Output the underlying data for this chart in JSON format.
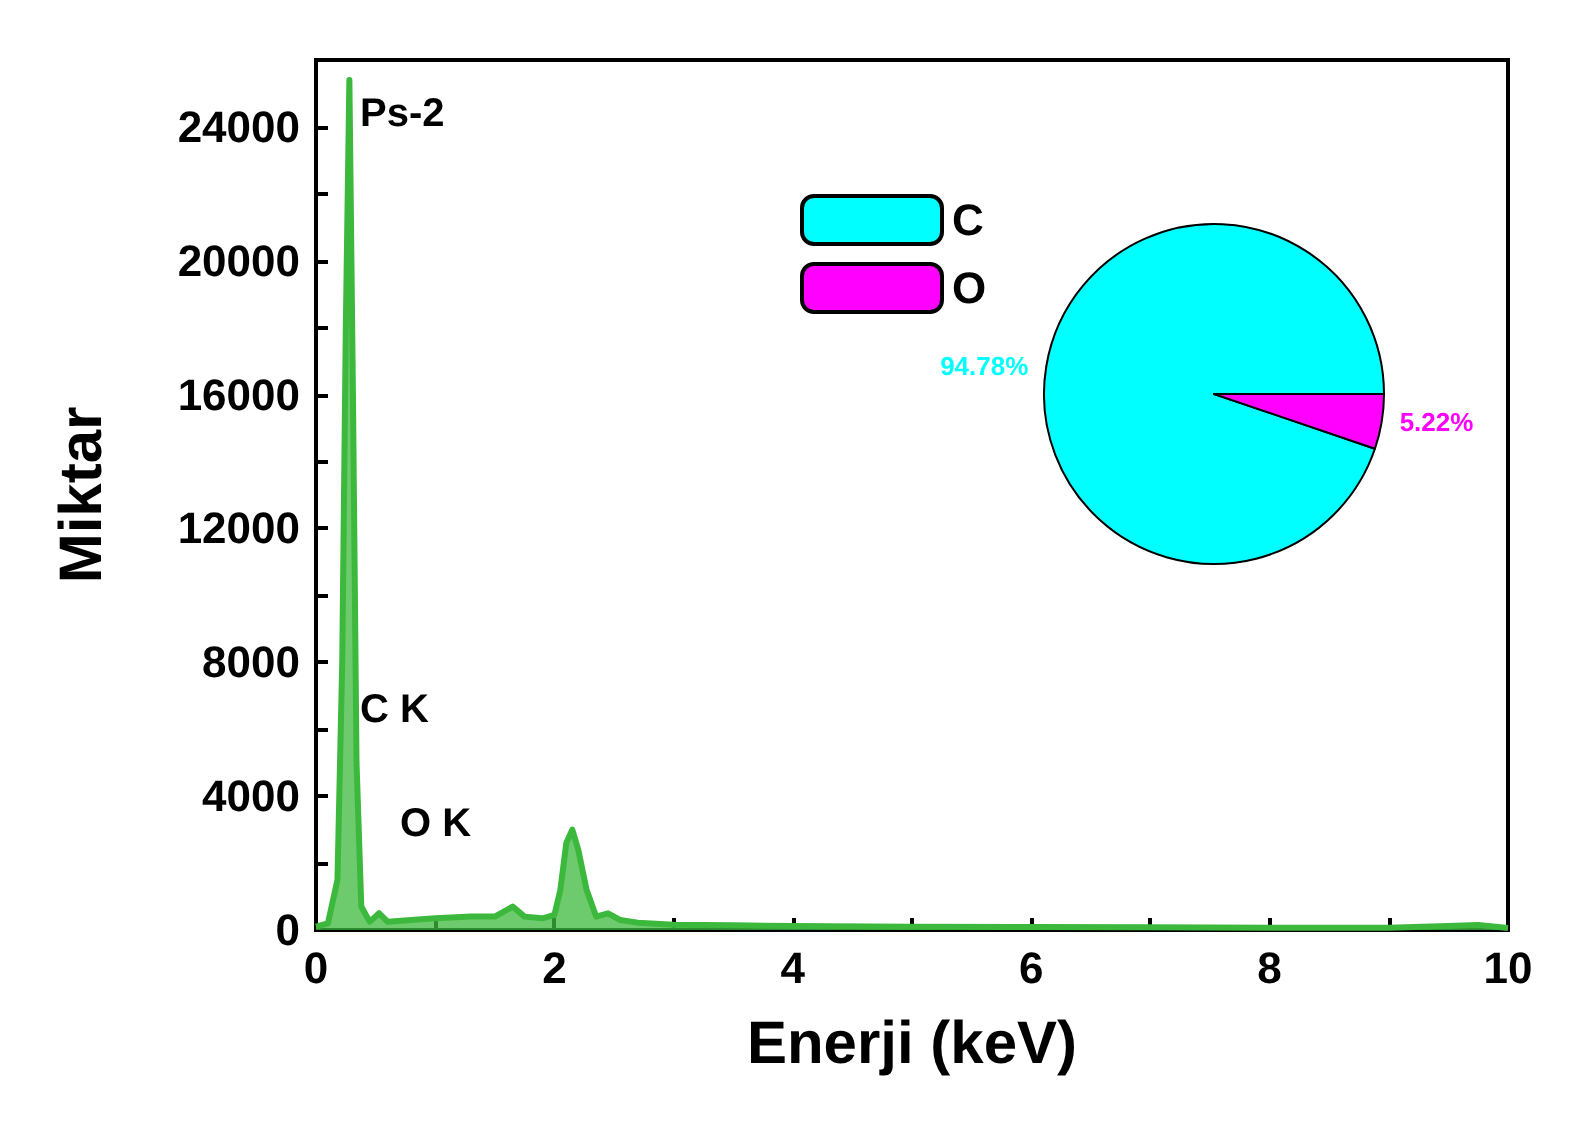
{
  "chart_data": [
    {
      "type": "area",
      "xlabel": "Enerji (keV)",
      "ylabel": "Miktar",
      "color": "#3cb93c",
      "annotations": [
        "Ps-2",
        "C K",
        "O K"
      ],
      "x": [
        0,
        0.1,
        0.18,
        0.22,
        0.25,
        0.28,
        0.31,
        0.34,
        0.38,
        0.45,
        0.53,
        0.6,
        0.8,
        1.0,
        1.3,
        1.5,
        1.65,
        1.75,
        1.9,
        2.0,
        2.05,
        2.1,
        2.15,
        2.2,
        2.27,
        2.35,
        2.45,
        2.55,
        2.7,
        3.0,
        3.5,
        4.0,
        5.0,
        6.0,
        7.0,
        8.0,
        9.0,
        9.5,
        9.75,
        10.0
      ],
      "values": [
        100,
        200,
        1500,
        8000,
        18000,
        25400,
        16000,
        5000,
        700,
        250,
        500,
        250,
        300,
        350,
        400,
        400,
        700,
        400,
        350,
        450,
        1200,
        2600,
        3000,
        2400,
        1200,
        400,
        500,
        300,
        220,
        160,
        140,
        120,
        100,
        90,
        80,
        70,
        70,
        120,
        150,
        60
      ],
      "xlim": [
        0,
        10
      ],
      "xticks": [
        0,
        {
          "value": 1,
          "label": null
        },
        2,
        {
          "value": 3,
          "label": null
        },
        4,
        {
          "value": 5,
          "label": null
        },
        6,
        {
          "value": 7,
          "label": null
        },
        8,
        {
          "value": 9,
          "label": null
        },
        10
      ],
      "ylim": [
        0,
        26000
      ],
      "yticks": [
        0,
        {
          "value": 2000,
          "label": null
        },
        4000,
        {
          "value": 6000,
          "label": null
        },
        8000,
        {
          "value": 10000,
          "label": null
        },
        12000,
        {
          "value": 14000,
          "label": null
        },
        16000,
        {
          "value": 18000,
          "label": null
        },
        20000,
        {
          "value": 22000,
          "label": null
        },
        24000
      ]
    },
    {
      "type": "pie",
      "categories": [
        "C",
        "O"
      ],
      "values": [
        94.78,
        5.22
      ],
      "colors": [
        "#00ffff",
        "#ff00ff"
      ],
      "value_labels": [
        "94.78%",
        "5.22%"
      ],
      "legend": "top left"
    }
  ]
}
